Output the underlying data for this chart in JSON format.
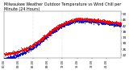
{
  "title": "Milwaukee Weather Outdoor Temperature vs Wind Chill per Minute (24 Hours)",
  "title_fontsize": 3.5,
  "bg_color": "#ffffff",
  "plot_bg_color": "#ffffff",
  "grid_color": "#bbbbbb",
  "temp_color": "#ff0000",
  "windchill_color": "#0000dd",
  "ylim": [
    20,
    52
  ],
  "ytick_values": [
    22,
    26,
    30,
    34,
    38,
    42,
    46,
    50
  ],
  "ylabel_fontsize": 3.0,
  "xlabel_fontsize": 2.8,
  "marker_size": 0.4,
  "num_points": 1440,
  "vline_positions": [
    360,
    720
  ],
  "seed": 42,
  "figwidth": 1.6,
  "figheight": 0.87,
  "dpi": 100
}
